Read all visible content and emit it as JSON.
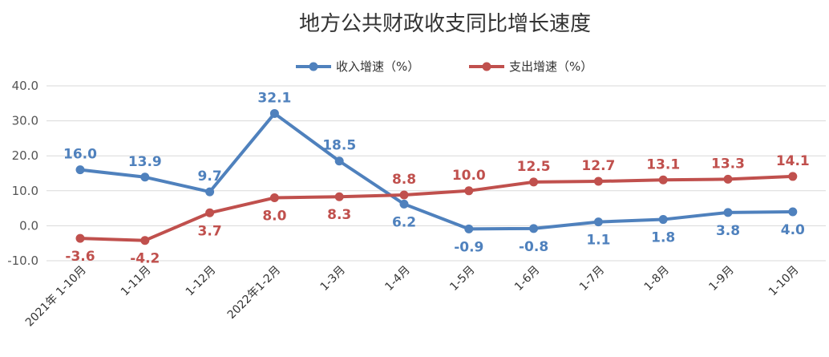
{
  "chart_data": {
    "type": "line",
    "title": "地方公共财政收支同比增长速度",
    "categories": [
      "2021年 1-10月",
      "1-11月",
      "1-12月",
      "2022年1-2月",
      "1-3月",
      "1-4月",
      "1-5月",
      "1-6月",
      "1-7月",
      "1-8月",
      "1-9月",
      "1-10月"
    ],
    "series": [
      {
        "name": "收入增速（%）",
        "color": "#4F81BD",
        "values": [
          16.0,
          13.9,
          9.7,
          32.1,
          18.5,
          6.2,
          -0.9,
          -0.8,
          1.1,
          1.8,
          3.8,
          4.0
        ],
        "labels": [
          "16.0",
          "13.9",
          "9.7",
          "32.1",
          "18.5",
          "6.2",
          "-0.9",
          "-0.8",
          "1.1",
          "1.8",
          "3.8",
          "4.0"
        ],
        "label_positions": [
          "above",
          "above",
          "above",
          "above",
          "above",
          "below",
          "below",
          "below",
          "below",
          "below",
          "below",
          "below"
        ]
      },
      {
        "name": "支出增速（%）",
        "color": "#C0504D",
        "values": [
          -3.6,
          -4.2,
          3.7,
          8.0,
          8.3,
          8.8,
          10.0,
          12.5,
          12.7,
          13.1,
          13.3,
          14.1
        ],
        "labels": [
          "-3.6",
          "-4.2",
          "3.7",
          "8.0",
          "8.3",
          "8.8",
          "10.0",
          "12.5",
          "12.7",
          "13.1",
          "13.3",
          "14.1"
        ],
        "label_positions": [
          "below",
          "below",
          "below",
          "below",
          "below",
          "above",
          "above",
          "above",
          "above",
          "above",
          "above",
          "above"
        ]
      }
    ],
    "yticks": [
      "40.0",
      "30.0",
      "20.0",
      "10.0",
      "0.0",
      "-10.0"
    ],
    "ylim": [
      -10,
      40
    ],
    "grid": true,
    "legend": "top-center"
  }
}
